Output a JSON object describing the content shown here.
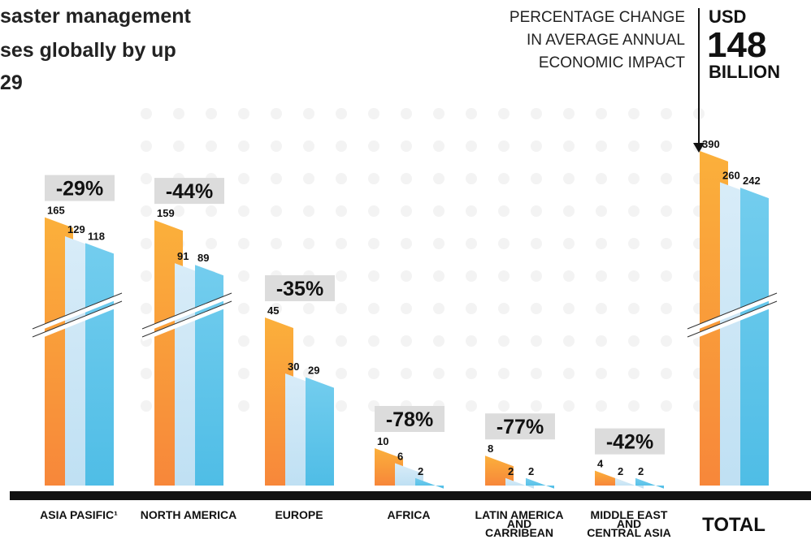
{
  "chart_data": {
    "type": "bar",
    "title_lines": [
      "saster management",
      "ses globally by up",
      "29"
    ],
    "callout": {
      "lines": [
        "PERCENTAGE CHANGE",
        "IN AVERAGE ANNUAL",
        "ECONOMIC IMPACT"
      ],
      "unit": "USD",
      "amount": "148",
      "scale": "BILLION"
    },
    "categories": [
      "ASIA PASIFIC¹",
      "NORTH AMERICA",
      "EUROPE",
      "AFRICA",
      "LATIN AMERICA\nAND\nCARRIBEAN",
      "MIDDLE EAST\nAND\nCENTRAL ASIA",
      "TOTAL"
    ],
    "series": [
      {
        "color": "#f7941d",
        "values": [
          165,
          159,
          45,
          10,
          8,
          4,
          390
        ]
      },
      {
        "color": "#cfe6f5",
        "values": [
          129,
          91,
          30,
          6,
          2,
          2,
          260
        ]
      },
      {
        "color": "#5bc2e7",
        "values": [
          118,
          89,
          29,
          2,
          2,
          2,
          242
        ]
      }
    ],
    "change": {
      "values": [
        -29,
        -44,
        -35,
        -78,
        -77,
        -42,
        null
      ],
      "value_labels": [
        "-29%",
        "-44%",
        "-35%",
        "-78%",
        "-77%",
        "-42%",
        null
      ]
    }
  }
}
